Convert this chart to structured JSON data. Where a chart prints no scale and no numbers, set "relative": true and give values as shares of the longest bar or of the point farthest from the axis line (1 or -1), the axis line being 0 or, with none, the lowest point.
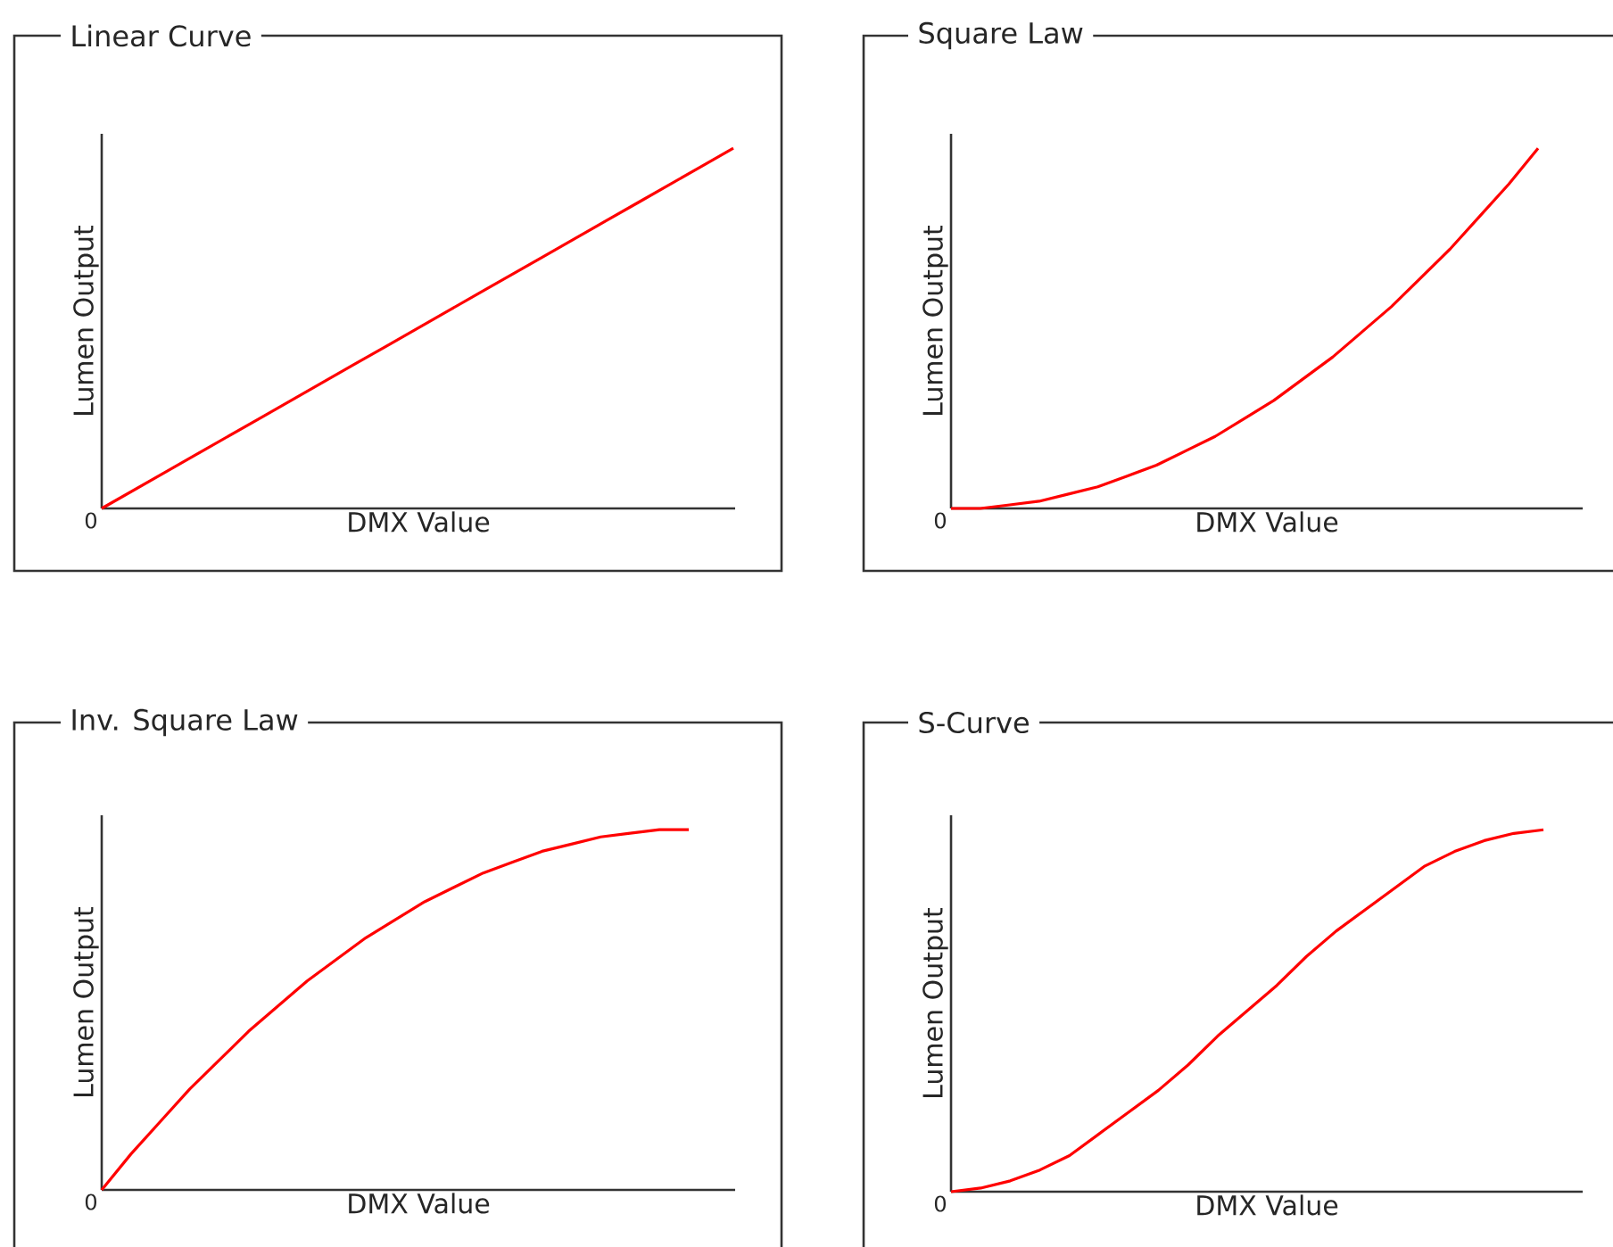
{
  "chart_data": [
    {
      "type": "line",
      "title": "Linear Curve",
      "xlabel": "DMX Value",
      "ylabel": "Lumen Output",
      "relative": true,
      "color": "#ff0000",
      "annotations": [
        "0"
      ],
      "categories": [
        null,
        null,
        null,
        null,
        null,
        null,
        null,
        null,
        null,
        null,
        null,
        null,
        null,
        null,
        null,
        null,
        null,
        null,
        null,
        null,
        null
      ],
      "values": [
        0,
        0.05,
        0.1,
        0.15,
        0.2,
        0.25,
        0.3,
        0.35,
        0.4,
        0.45,
        0.5,
        0.55,
        0.6,
        0.65,
        0.7,
        0.75,
        0.8,
        0.85,
        0.9,
        0.95,
        1
      ]
    },
    {
      "type": "line",
      "title": "Square Law",
      "xlabel": "DMX Value",
      "ylabel": "Lumen Output",
      "relative": true,
      "color": "#ff0000",
      "annotations": [
        "0"
      ],
      "categories": [
        null,
        null,
        null,
        null,
        null,
        null,
        null,
        null,
        null,
        null,
        null,
        null,
        null,
        null,
        null,
        null,
        null,
        null,
        null,
        null,
        null
      ],
      "values": [
        0,
        0,
        0.01,
        0.02,
        0.04,
        0.06,
        0.09,
        0.12,
        0.16,
        0.2,
        0.25,
        0.3,
        0.36,
        0.42,
        0.49,
        0.56,
        0.64,
        0.72,
        0.81,
        0.9,
        1
      ]
    },
    {
      "type": "line",
      "title": "Inv. Square Law",
      "xlabel": "DMX Value",
      "ylabel": "Lumen Output",
      "relative": true,
      "color": "#ff0000",
      "annotations": [
        "0"
      ],
      "categories": [
        null,
        null,
        null,
        null,
        null,
        null,
        null,
        null,
        null,
        null,
        null,
        null,
        null,
        null,
        null,
        null,
        null,
        null,
        null,
        null,
        null
      ],
      "values": [
        0,
        0.1,
        0.19,
        0.28,
        0.36,
        0.44,
        0.51,
        0.58,
        0.64,
        0.7,
        0.75,
        0.8,
        0.84,
        0.88,
        0.91,
        0.94,
        0.96,
        0.98,
        0.99,
        1,
        1
      ]
    },
    {
      "type": "line",
      "title": "S-Curve",
      "xlabel": "DMX Value",
      "ylabel": "Lumen Output",
      "relative": true,
      "color": "#ff0000",
      "annotations": [
        "0"
      ],
      "categories": [
        null,
        null,
        null,
        null,
        null,
        null,
        null,
        null,
        null,
        null,
        null,
        null,
        null,
        null,
        null,
        null,
        null,
        null,
        null,
        null,
        null
      ],
      "values": [
        0,
        0.01,
        0.03,
        0.06,
        0.1,
        0.16,
        0.22,
        0.28,
        0.35,
        0.43,
        0.5,
        0.57,
        0.65,
        0.72,
        0.78,
        0.84,
        0.9,
        0.94,
        0.97,
        0.99,
        1
      ]
    }
  ]
}
